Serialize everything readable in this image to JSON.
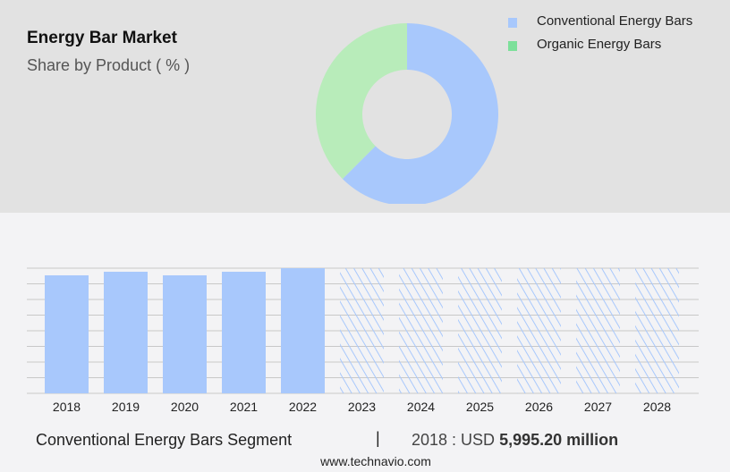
{
  "header": {
    "title": "Energy Bar Market",
    "subtitle": "Share by Product ( % )"
  },
  "chart_data": [
    {
      "type": "pie",
      "donut": true,
      "title": "Share by Product ( % )",
      "labels": [
        "Conventional Energy Bars",
        "Organic Energy Bars"
      ],
      "values": [
        62.5,
        37.5
      ],
      "colors": [
        "#a8c8fc",
        "#b8ecba"
      ],
      "legend_colors": [
        "#a8c8fc",
        "#7ce09a"
      ],
      "legend": "top-right"
    },
    {
      "type": "bar",
      "title": "Conventional Energy Bars Segment",
      "categories": [
        "2018",
        "2019",
        "2020",
        "2021",
        "2022",
        "2023",
        "2024",
        "2025",
        "2026",
        "2027",
        "2028"
      ],
      "values": [
        5995.2,
        6177,
        5995,
        6177,
        6358,
        null,
        null,
        null,
        null,
        null,
        null
      ],
      "forecast": [
        false,
        false,
        false,
        false,
        false,
        true,
        true,
        true,
        true,
        true,
        true
      ],
      "ylim": [
        0,
        6358
      ],
      "grid": true,
      "color": "#a8c8fc",
      "xlabel": "",
      "ylabel": ""
    }
  ],
  "footer": {
    "segment": "Conventional Energy Bars Segment",
    "separator": "|",
    "prefix": "2018 : USD ",
    "value": "5,995.20 million",
    "url": "www.technavio.com"
  }
}
